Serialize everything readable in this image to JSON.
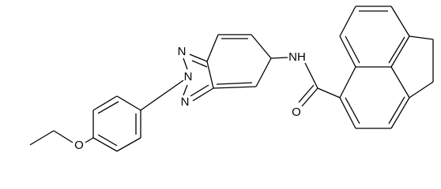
{
  "atoms": [
    {
      "label": "N"
    },
    {
      "label": "N"
    },
    {
      "label": "N"
    },
    {
      "label": "NH"
    },
    {
      "label": "O"
    },
    {
      "label": "O"
    }
  ]
}
